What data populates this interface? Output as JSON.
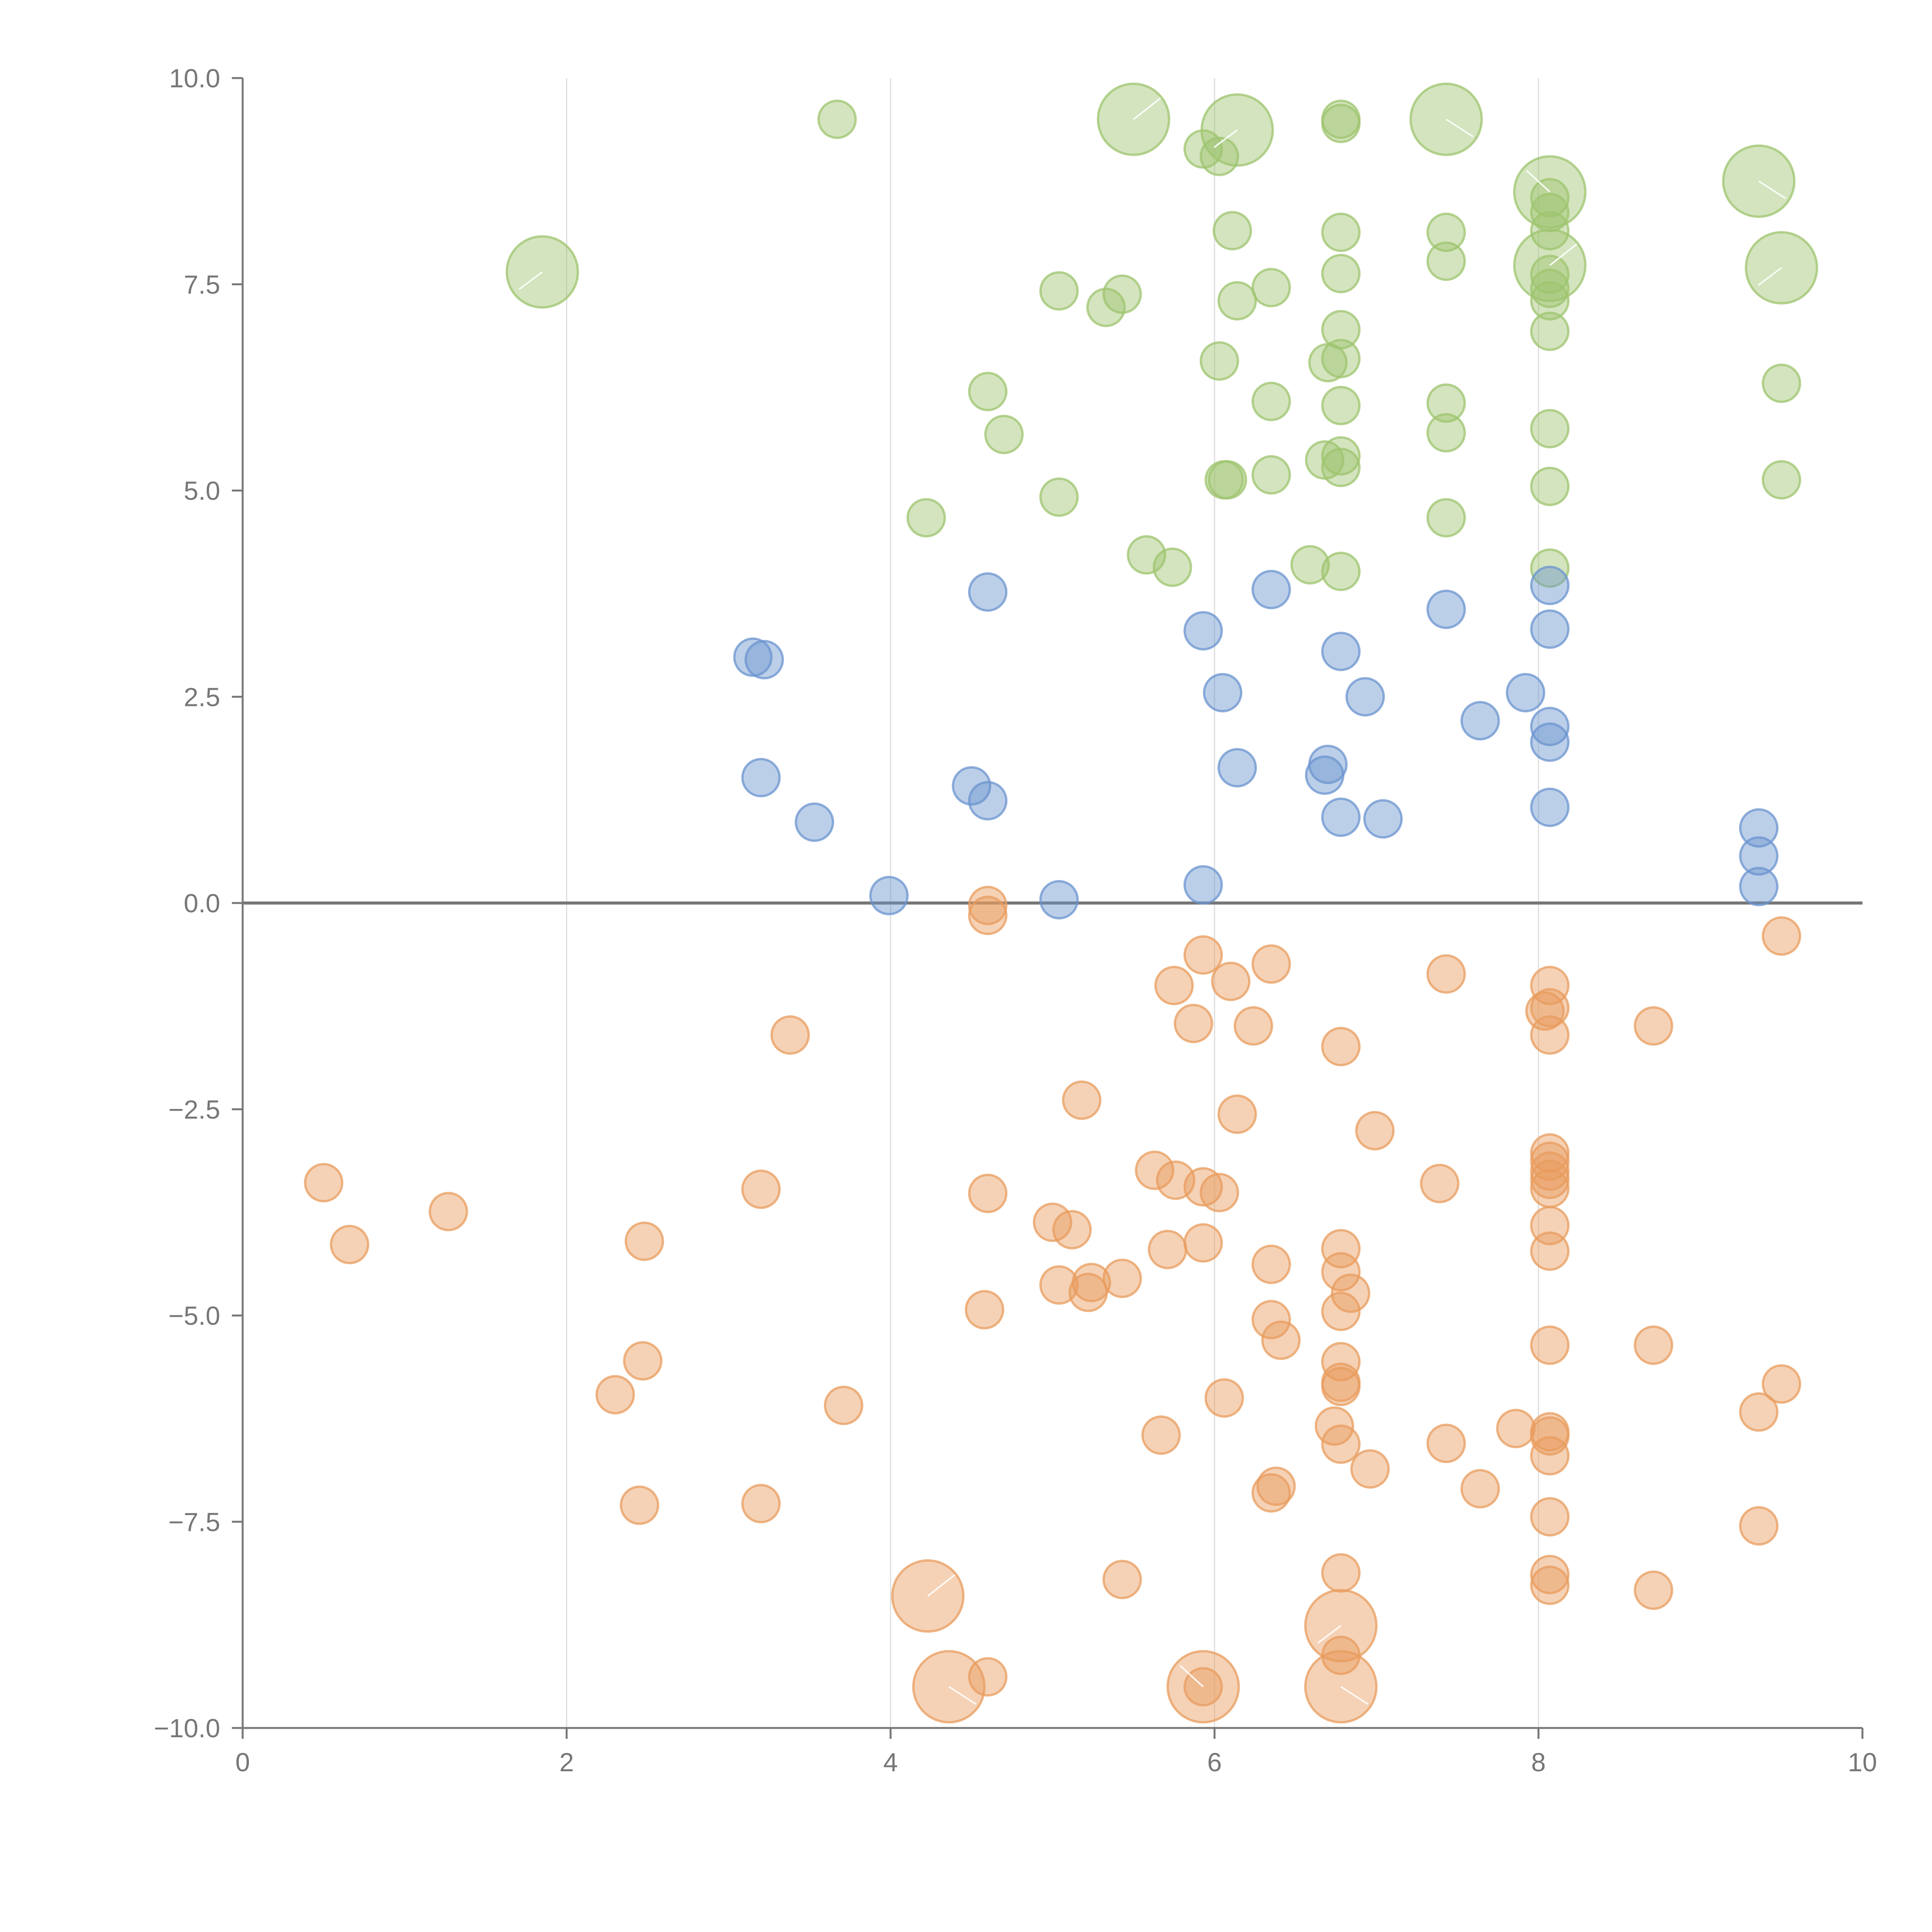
{
  "chart_data": {
    "type": "scatter",
    "title": "",
    "xlabel": "",
    "ylabel": "",
    "xlim": [
      0,
      10
    ],
    "ylim": [
      -10,
      10
    ],
    "x_ticks": [
      "0",
      "2",
      "4",
      "6",
      "8",
      "10"
    ],
    "y_ticks": [
      "−10.0",
      "−7.5",
      "−5.0",
      "−2.5",
      "0.0",
      "2.5",
      "5.0",
      "7.5",
      "10.0"
    ],
    "x_grid": true,
    "y_grid": false,
    "reference_line_y": 0,
    "legend": "none",
    "colors": {
      "green": "#9dc46e",
      "blue": "#6b94cf",
      "orange": "#e89c5e"
    },
    "series": [
      {
        "color_key": "green",
        "points": [
          {
            "x": 3.67,
            "y": 9.5,
            "r": 1
          },
          {
            "x": 5.5,
            "y": 9.5,
            "r": 2
          },
          {
            "x": 5.93,
            "y": 9.14,
            "r": 1
          },
          {
            "x": 6.03,
            "y": 9.05,
            "r": 1
          },
          {
            "x": 6.14,
            "y": 9.37,
            "r": 2
          },
          {
            "x": 6.78,
            "y": 9.5,
            "r": 1
          },
          {
            "x": 6.78,
            "y": 9.45,
            "r": 1
          },
          {
            "x": 7.43,
            "y": 9.5,
            "r": 2
          },
          {
            "x": 8.07,
            "y": 8.62,
            "r": 2
          },
          {
            "x": 8.07,
            "y": 8.55,
            "r": 1
          },
          {
            "x": 8.07,
            "y": 8.37,
            "r": 1
          },
          {
            "x": 8.07,
            "y": 8.15,
            "r": 1
          },
          {
            "x": 9.36,
            "y": 8.75,
            "r": 2
          },
          {
            "x": 1.85,
            "y": 7.65,
            "r": 2
          },
          {
            "x": 6.11,
            "y": 8.15,
            "r": 1
          },
          {
            "x": 6.78,
            "y": 8.13,
            "r": 1
          },
          {
            "x": 7.43,
            "y": 8.13,
            "r": 1
          },
          {
            "x": 7.43,
            "y": 7.78,
            "r": 1
          },
          {
            "x": 8.07,
            "y": 7.73,
            "r": 2
          },
          {
            "x": 8.07,
            "y": 7.62,
            "r": 1
          },
          {
            "x": 8.07,
            "y": 7.45,
            "r": 1
          },
          {
            "x": 8.07,
            "y": 7.3,
            "r": 1
          },
          {
            "x": 9.5,
            "y": 7.7,
            "r": 2
          },
          {
            "x": 5.04,
            "y": 7.42,
            "r": 1
          },
          {
            "x": 5.43,
            "y": 7.38,
            "r": 1
          },
          {
            "x": 5.33,
            "y": 7.22,
            "r": 1
          },
          {
            "x": 6.14,
            "y": 7.3,
            "r": 1
          },
          {
            "x": 6.35,
            "y": 7.46,
            "r": 1
          },
          {
            "x": 6.78,
            "y": 7.63,
            "r": 1
          },
          {
            "x": 6.78,
            "y": 6.95,
            "r": 1
          },
          {
            "x": 8.07,
            "y": 6.93,
            "r": 1
          },
          {
            "x": 6.03,
            "y": 6.57,
            "r": 1
          },
          {
            "x": 6.7,
            "y": 6.55,
            "r": 1
          },
          {
            "x": 6.78,
            "y": 6.6,
            "r": 1
          },
          {
            "x": 9.5,
            "y": 6.3,
            "r": 1
          },
          {
            "x": 4.6,
            "y": 6.2,
            "r": 1
          },
          {
            "x": 6.35,
            "y": 6.08,
            "r": 1
          },
          {
            "x": 6.78,
            "y": 6.03,
            "r": 1
          },
          {
            "x": 7.43,
            "y": 6.06,
            "r": 1
          },
          {
            "x": 4.7,
            "y": 5.68,
            "r": 1
          },
          {
            "x": 7.43,
            "y": 5.7,
            "r": 1
          },
          {
            "x": 8.07,
            "y": 5.75,
            "r": 1
          },
          {
            "x": 6.68,
            "y": 5.37,
            "r": 1
          },
          {
            "x": 6.78,
            "y": 5.42,
            "r": 1
          },
          {
            "x": 6.78,
            "y": 5.28,
            "r": 1
          },
          {
            "x": 6.06,
            "y": 5.13,
            "r": 1
          },
          {
            "x": 6.08,
            "y": 5.13,
            "r": 1
          },
          {
            "x": 6.35,
            "y": 5.19,
            "r": 1
          },
          {
            "x": 9.5,
            "y": 5.13,
            "r": 1
          },
          {
            "x": 8.07,
            "y": 5.05,
            "r": 1
          },
          {
            "x": 5.04,
            "y": 4.92,
            "r": 1
          },
          {
            "x": 4.22,
            "y": 4.67,
            "r": 1
          },
          {
            "x": 7.43,
            "y": 4.67,
            "r": 1
          },
          {
            "x": 5.58,
            "y": 4.22,
            "r": 1
          },
          {
            "x": 5.74,
            "y": 4.07,
            "r": 1
          },
          {
            "x": 6.59,
            "y": 4.1,
            "r": 1
          },
          {
            "x": 6.78,
            "y": 4.02,
            "r": 1
          },
          {
            "x": 8.07,
            "y": 4.06,
            "r": 1
          }
        ]
      },
      {
        "color_key": "blue",
        "points": [
          {
            "x": 4.6,
            "y": 3.77,
            "r": 1
          },
          {
            "x": 6.35,
            "y": 3.8,
            "r": 1
          },
          {
            "x": 8.07,
            "y": 3.85,
            "r": 1
          },
          {
            "x": 7.43,
            "y": 3.56,
            "r": 1
          },
          {
            "x": 5.93,
            "y": 3.3,
            "r": 1
          },
          {
            "x": 8.07,
            "y": 3.32,
            "r": 1
          },
          {
            "x": 3.15,
            "y": 2.98,
            "r": 1
          },
          {
            "x": 3.22,
            "y": 2.95,
            "r": 1
          },
          {
            "x": 6.78,
            "y": 3.05,
            "r": 1
          },
          {
            "x": 6.05,
            "y": 2.55,
            "r": 1
          },
          {
            "x": 6.93,
            "y": 2.5,
            "r": 1
          },
          {
            "x": 7.92,
            "y": 2.55,
            "r": 1
          },
          {
            "x": 7.64,
            "y": 2.21,
            "r": 1
          },
          {
            "x": 8.07,
            "y": 2.14,
            "r": 1
          },
          {
            "x": 8.07,
            "y": 1.95,
            "r": 1
          },
          {
            "x": 6.14,
            "y": 1.64,
            "r": 1
          },
          {
            "x": 6.7,
            "y": 1.68,
            "r": 1
          },
          {
            "x": 6.68,
            "y": 1.55,
            "r": 1
          },
          {
            "x": 3.2,
            "y": 1.52,
            "r": 1
          },
          {
            "x": 4.5,
            "y": 1.42,
            "r": 1
          },
          {
            "x": 4.6,
            "y": 1.24,
            "r": 1
          },
          {
            "x": 8.07,
            "y": 1.16,
            "r": 1
          },
          {
            "x": 6.78,
            "y": 1.04,
            "r": 1
          },
          {
            "x": 7.04,
            "y": 1.02,
            "r": 1
          },
          {
            "x": 3.53,
            "y": 0.98,
            "r": 1
          },
          {
            "x": 9.36,
            "y": 0.91,
            "r": 1
          },
          {
            "x": 9.36,
            "y": 0.57,
            "r": 1
          },
          {
            "x": 5.93,
            "y": 0.22,
            "r": 1
          },
          {
            "x": 9.36,
            "y": 0.2,
            "r": 1
          },
          {
            "x": 3.99,
            "y": 0.09,
            "r": 1
          },
          {
            "x": 5.04,
            "y": 0.04,
            "r": 1
          }
        ]
      },
      {
        "color_key": "orange",
        "points": [
          {
            "x": 4.6,
            "y": -0.03,
            "r": 1
          },
          {
            "x": 4.6,
            "y": -0.15,
            "r": 1
          },
          {
            "x": 9.5,
            "y": -0.4,
            "r": 1
          },
          {
            "x": 5.93,
            "y": -0.63,
            "r": 1
          },
          {
            "x": 6.35,
            "y": -0.74,
            "r": 1
          },
          {
            "x": 7.43,
            "y": -0.86,
            "r": 1
          },
          {
            "x": 6.1,
            "y": -0.95,
            "r": 1
          },
          {
            "x": 5.75,
            "y": -1.0,
            "r": 1
          },
          {
            "x": 8.07,
            "y": -1.0,
            "r": 1
          },
          {
            "x": 8.04,
            "y": -1.31,
            "r": 1
          },
          {
            "x": 8.07,
            "y": -1.27,
            "r": 1
          },
          {
            "x": 5.87,
            "y": -1.46,
            "r": 1
          },
          {
            "x": 6.24,
            "y": -1.49,
            "r": 1
          },
          {
            "x": 8.71,
            "y": -1.49,
            "r": 1
          },
          {
            "x": 3.38,
            "y": -1.6,
            "r": 1
          },
          {
            "x": 8.07,
            "y": -1.6,
            "r": 1
          },
          {
            "x": 6.78,
            "y": -1.74,
            "r": 1
          },
          {
            "x": 5.18,
            "y": -2.39,
            "r": 1
          },
          {
            "x": 6.14,
            "y": -2.56,
            "r": 1
          },
          {
            "x": 6.99,
            "y": -2.76,
            "r": 1
          },
          {
            "x": 8.07,
            "y": -3.03,
            "r": 1
          },
          {
            "x": 8.07,
            "y": -3.13,
            "r": 1
          },
          {
            "x": 8.07,
            "y": -3.25,
            "r": 1
          },
          {
            "x": 8.07,
            "y": -3.35,
            "r": 1
          },
          {
            "x": 8.07,
            "y": -3.46,
            "r": 1
          },
          {
            "x": 5.63,
            "y": -3.24,
            "r": 1
          },
          {
            "x": 5.76,
            "y": -3.36,
            "r": 1
          },
          {
            "x": 5.93,
            "y": -3.44,
            "r": 1
          },
          {
            "x": 6.03,
            "y": -3.51,
            "r": 1
          },
          {
            "x": 7.39,
            "y": -3.4,
            "r": 1
          },
          {
            "x": 0.5,
            "y": -3.39,
            "r": 1
          },
          {
            "x": 3.2,
            "y": -3.47,
            "r": 1
          },
          {
            "x": 4.6,
            "y": -3.52,
            "r": 1
          },
          {
            "x": 1.27,
            "y": -3.74,
            "r": 1
          },
          {
            "x": 5.0,
            "y": -3.87,
            "r": 1
          },
          {
            "x": 5.12,
            "y": -3.96,
            "r": 1
          },
          {
            "x": 8.07,
            "y": -3.91,
            "r": 1
          },
          {
            "x": 0.66,
            "y": -4.14,
            "r": 1
          },
          {
            "x": 2.48,
            "y": -4.1,
            "r": 1
          },
          {
            "x": 5.93,
            "y": -4.12,
            "r": 1
          },
          {
            "x": 5.71,
            "y": -4.2,
            "r": 1
          },
          {
            "x": 6.78,
            "y": -4.19,
            "r": 1
          },
          {
            "x": 8.07,
            "y": -4.22,
            "r": 1
          },
          {
            "x": 6.35,
            "y": -4.38,
            "r": 1
          },
          {
            "x": 6.78,
            "y": -4.47,
            "r": 1
          },
          {
            "x": 5.43,
            "y": -4.55,
            "r": 1
          },
          {
            "x": 5.24,
            "y": -4.6,
            "r": 1
          },
          {
            "x": 5.04,
            "y": -4.63,
            "r": 1
          },
          {
            "x": 5.22,
            "y": -4.72,
            "r": 1
          },
          {
            "x": 6.84,
            "y": -4.73,
            "r": 1
          },
          {
            "x": 4.58,
            "y": -4.93,
            "r": 1
          },
          {
            "x": 6.78,
            "y": -4.95,
            "r": 1
          },
          {
            "x": 6.35,
            "y": -5.05,
            "r": 1
          },
          {
            "x": 6.41,
            "y": -5.3,
            "r": 1
          },
          {
            "x": 8.07,
            "y": -5.36,
            "r": 1
          },
          {
            "x": 8.71,
            "y": -5.36,
            "r": 1
          },
          {
            "x": 2.47,
            "y": -5.55,
            "r": 1
          },
          {
            "x": 6.78,
            "y": -5.56,
            "r": 1
          },
          {
            "x": 6.78,
            "y": -5.81,
            "r": 1
          },
          {
            "x": 6.78,
            "y": -5.86,
            "r": 1
          },
          {
            "x": 9.5,
            "y": -5.83,
            "r": 1
          },
          {
            "x": 2.3,
            "y": -5.96,
            "r": 1
          },
          {
            "x": 6.06,
            "y": -6.0,
            "r": 1
          },
          {
            "x": 3.71,
            "y": -6.09,
            "r": 1
          },
          {
            "x": 9.36,
            "y": -6.17,
            "r": 1
          },
          {
            "x": 6.74,
            "y": -6.34,
            "r": 1
          },
          {
            "x": 7.86,
            "y": -6.37,
            "r": 1
          },
          {
            "x": 8.07,
            "y": -6.41,
            "r": 1
          },
          {
            "x": 8.07,
            "y": -6.46,
            "r": 1
          },
          {
            "x": 5.67,
            "y": -6.45,
            "r": 1
          },
          {
            "x": 6.78,
            "y": -6.56,
            "r": 1
          },
          {
            "x": 7.43,
            "y": -6.55,
            "r": 1
          },
          {
            "x": 8.07,
            "y": -6.7,
            "r": 1
          },
          {
            "x": 6.96,
            "y": -6.86,
            "r": 1
          },
          {
            "x": 6.38,
            "y": -7.07,
            "r": 1
          },
          {
            "x": 6.35,
            "y": -7.15,
            "r": 1
          },
          {
            "x": 7.64,
            "y": -7.1,
            "r": 1
          },
          {
            "x": 2.45,
            "y": -7.3,
            "r": 1
          },
          {
            "x": 3.2,
            "y": -7.28,
            "r": 1
          },
          {
            "x": 8.07,
            "y": -7.44,
            "r": 1
          },
          {
            "x": 9.36,
            "y": -7.55,
            "r": 1
          },
          {
            "x": 6.78,
            "y": -8.12,
            "r": 1
          },
          {
            "x": 8.07,
            "y": -8.14,
            "r": 1
          },
          {
            "x": 8.07,
            "y": -8.27,
            "r": 1
          },
          {
            "x": 5.43,
            "y": -8.2,
            "r": 1
          },
          {
            "x": 8.71,
            "y": -8.33,
            "r": 1
          },
          {
            "x": 4.23,
            "y": -8.4,
            "r": 2
          },
          {
            "x": 6.78,
            "y": -8.76,
            "r": 2
          },
          {
            "x": 6.78,
            "y": -9.12,
            "r": 1
          },
          {
            "x": 4.6,
            "y": -9.38,
            "r": 1
          },
          {
            "x": 4.36,
            "y": -9.5,
            "r": 2
          },
          {
            "x": 5.93,
            "y": -9.5,
            "r": 2
          },
          {
            "x": 5.93,
            "y": -9.5,
            "r": 1
          },
          {
            "x": 6.78,
            "y": -9.5,
            "r": 2
          }
        ]
      }
    ]
  }
}
